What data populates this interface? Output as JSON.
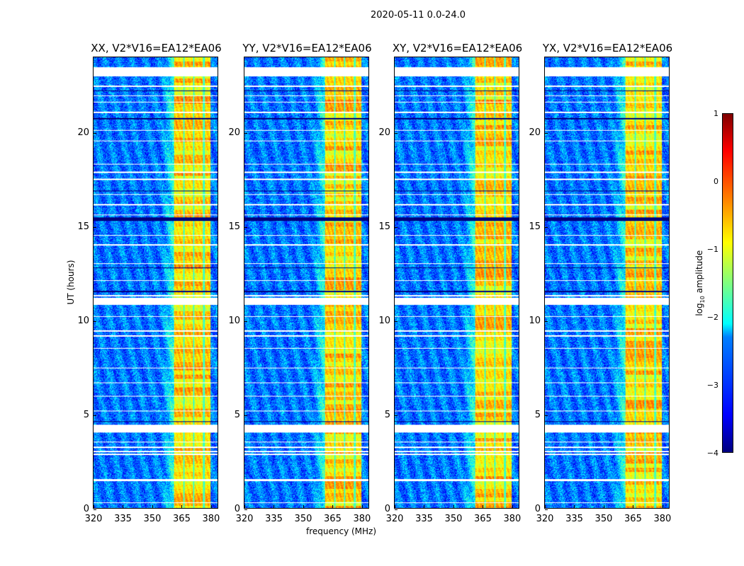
{
  "figure_title": "2020-05-11 0.0-24.0",
  "chart_data": [
    {
      "type": "heatmap",
      "title": "XX, V2*V16=EA12*EA06",
      "xlim": [
        320,
        384
      ],
      "ylim": [
        0,
        24
      ]
    },
    {
      "type": "heatmap",
      "title": "YY, V2*V16=EA12*EA06",
      "xlim": [
        320,
        384
      ],
      "ylim": [
        0,
        24
      ]
    },
    {
      "type": "heatmap",
      "title": "XY, V2*V16=EA12*EA06",
      "xlim": [
        320,
        384
      ],
      "ylim": [
        0,
        24
      ]
    },
    {
      "type": "heatmap",
      "title": "YX, V2*V16=EA12*EA06",
      "xlim": [
        320,
        384
      ],
      "ylim": [
        0,
        24
      ]
    }
  ],
  "axes": {
    "xlabel": "frequency (MHz)",
    "ylabel": "UT (hours)",
    "xticks": [
      "320",
      "335",
      "350",
      "365",
      "380"
    ],
    "xtick_values": [
      320,
      335,
      350,
      365,
      380
    ],
    "yticks": [
      "0",
      "5",
      "10",
      "15",
      "20"
    ],
    "ytick_values": [
      0,
      5,
      10,
      15,
      20
    ]
  },
  "signal": {
    "band_mhz": [
      361.5,
      380.3
    ],
    "band_gaps_mhz": [
      366.5,
      371.5,
      376.8
    ],
    "background_log_amp": -2.8,
    "band_log_amp": -0.7,
    "flagged_hours": [
      [
        0.3,
        0.33
      ],
      [
        1.45,
        1.55
      ],
      [
        2.85,
        2.92
      ],
      [
        3.0,
        3.05
      ],
      [
        3.2,
        3.27
      ],
      [
        3.5,
        3.55
      ],
      [
        4.05,
        4.45
      ],
      [
        5.15,
        5.22
      ],
      [
        5.95,
        6.0
      ],
      [
        6.65,
        6.7
      ],
      [
        7.45,
        7.5
      ],
      [
        8.5,
        8.55
      ],
      [
        9.15,
        9.22
      ],
      [
        9.4,
        9.47
      ],
      [
        10.2,
        10.25
      ],
      [
        10.85,
        11.2
      ],
      [
        11.3,
        11.35
      ],
      [
        12.1,
        12.15
      ],
      [
        13.0,
        13.05
      ],
      [
        14.0,
        14.05
      ],
      [
        14.5,
        14.55
      ],
      [
        15.6,
        15.65
      ],
      [
        16.15,
        16.2
      ],
      [
        16.7,
        16.75
      ],
      [
        17.5,
        17.55
      ],
      [
        17.85,
        17.92
      ],
      [
        18.3,
        18.35
      ],
      [
        19.55,
        19.6
      ],
      [
        20.1,
        20.15
      ],
      [
        21.05,
        21.12
      ],
      [
        21.6,
        21.65
      ],
      [
        21.95,
        22.0
      ],
      [
        22.45,
        22.5
      ],
      [
        23.0,
        23.5
      ]
    ],
    "dark_hours": [
      [
        0.42,
        0.45
      ],
      [
        4.6,
        4.63
      ],
      [
        5.0,
        5.03
      ],
      [
        11.5,
        11.6
      ],
      [
        12.8,
        12.83
      ],
      [
        15.3,
        15.5
      ],
      [
        16.9,
        16.93
      ],
      [
        20.7,
        20.8
      ],
      [
        22.2,
        22.25
      ]
    ]
  },
  "colorbar": {
    "label": "log10 amplitude",
    "label_main": "log",
    "label_sub": "10",
    "label_rest": " amplitude",
    "ticks": [
      "1",
      "0",
      "−1",
      "−2",
      "−3",
      "−4"
    ],
    "range": [
      -4,
      1
    ]
  }
}
